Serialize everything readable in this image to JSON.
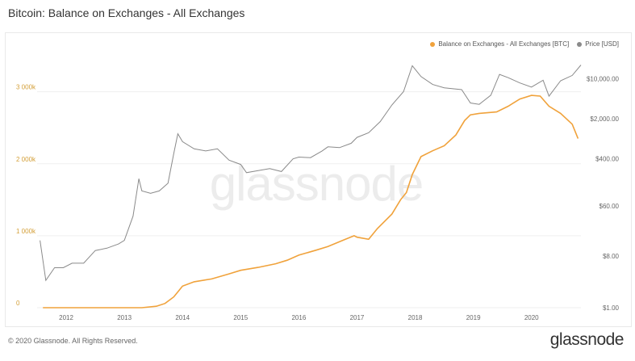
{
  "title": "Bitcoin: Balance on Exchanges - All Exchanges",
  "watermark": "glassnode",
  "footer": {
    "copyright": "© 2020 Glassnode. All Rights Reserved.",
    "brand": "glassnode"
  },
  "colors": {
    "balance": "#f0a23b",
    "price": "#8a8a8a",
    "left_axis_text": "#d4a03a",
    "grid": "#efefef",
    "watermark": "#ececec"
  },
  "chart_data": {
    "type": "line",
    "title": "Bitcoin: Balance on Exchanges - All Exchanges",
    "x_range": [
      2011.5,
      2020.85
    ],
    "x_ticks": [
      "2012",
      "2013",
      "2014",
      "2015",
      "2016",
      "2017",
      "2018",
      "2019",
      "2020"
    ],
    "y_left": {
      "scale": "linear",
      "range": [
        0,
        3400000
      ],
      "ticks": [
        {
          "value": 0,
          "label": "0"
        },
        {
          "value": 1000000,
          "label": "1 000k"
        },
        {
          "value": 2000000,
          "label": "2 000k"
        },
        {
          "value": 3000000,
          "label": "3 000k"
        }
      ]
    },
    "y_right": {
      "scale": "log",
      "range": [
        1,
        19000
      ],
      "ticks": [
        {
          "value": 1,
          "label": "$1.00"
        },
        {
          "value": 8,
          "label": "$8.00"
        },
        {
          "value": 60,
          "label": "$60.00"
        },
        {
          "value": 400,
          "label": "$400.00"
        },
        {
          "value": 2000,
          "label": "$2,000.00"
        },
        {
          "value": 10000,
          "label": "$10,000.00"
        }
      ]
    },
    "grid": "horizontal",
    "legend_position": "top-right",
    "series": [
      {
        "name": "Balance on Exchanges - All Exchanges [BTC]",
        "axis": "left",
        "x": [
          2011.6,
          2012.0,
          2012.5,
          2013.0,
          2013.3,
          2013.55,
          2013.7,
          2013.85,
          2013.95,
          2014.0,
          2014.2,
          2014.5,
          2014.8,
          2015.0,
          2015.3,
          2015.6,
          2015.8,
          2016.0,
          2016.3,
          2016.5,
          2016.8,
          2016.95,
          2017.0,
          2017.2,
          2017.35,
          2017.6,
          2017.75,
          2017.85,
          2017.95,
          2018.1,
          2018.3,
          2018.5,
          2018.7,
          2018.85,
          2018.95,
          2019.1,
          2019.4,
          2019.6,
          2019.8,
          2020.0,
          2020.15,
          2020.3,
          2020.5,
          2020.7,
          2020.8
        ],
        "values": [
          0,
          0,
          0,
          0,
          0,
          20000,
          60000,
          150000,
          250000,
          300000,
          360000,
          400000,
          470000,
          520000,
          560000,
          610000,
          660000,
          730000,
          800000,
          850000,
          950000,
          1000000,
          980000,
          950000,
          1100000,
          1300000,
          1500000,
          1600000,
          1850000,
          2100000,
          2180000,
          2250000,
          2400000,
          2600000,
          2680000,
          2700000,
          2720000,
          2800000,
          2900000,
          2950000,
          2940000,
          2800000,
          2700000,
          2550000,
          2350000
        ]
      },
      {
        "name": "Price [USD]",
        "axis": "right",
        "x": [
          2011.55,
          2011.65,
          2011.8,
          2011.95,
          2012.1,
          2012.3,
          2012.5,
          2012.7,
          2012.9,
          2013.0,
          2013.15,
          2013.25,
          2013.3,
          2013.45,
          2013.6,
          2013.75,
          2013.85,
          2013.92,
          2014.0,
          2014.2,
          2014.4,
          2014.6,
          2014.8,
          2015.0,
          2015.1,
          2015.3,
          2015.5,
          2015.7,
          2015.9,
          2016.0,
          2016.2,
          2016.4,
          2016.5,
          2016.7,
          2016.9,
          2017.0,
          2017.2,
          2017.4,
          2017.6,
          2017.8,
          2017.95,
          2018.1,
          2018.3,
          2018.5,
          2018.8,
          2018.95,
          2019.1,
          2019.3,
          2019.45,
          2019.6,
          2019.8,
          2020.0,
          2020.2,
          2020.3,
          2020.5,
          2020.7,
          2020.85
        ],
        "values": [
          15,
          3,
          5,
          5,
          6,
          6,
          10,
          11,
          13,
          15,
          40,
          180,
          110,
          100,
          110,
          150,
          500,
          1100,
          800,
          600,
          550,
          600,
          380,
          320,
          230,
          250,
          270,
          240,
          400,
          430,
          420,
          550,
          650,
          630,
          750,
          950,
          1150,
          1800,
          3500,
          6000,
          17000,
          11000,
          8000,
          7000,
          6500,
          3800,
          3600,
          5200,
          12000,
          10500,
          8500,
          7200,
          9500,
          5000,
          9300,
          11500,
          17500
        ]
      }
    ]
  }
}
